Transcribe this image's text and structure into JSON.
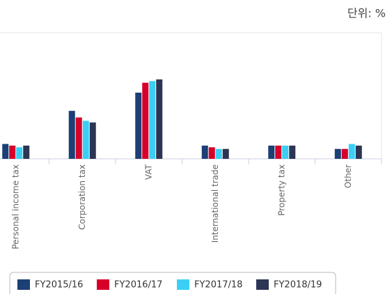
{
  "chart_data": {
    "type": "bar",
    "unit_label": "단위: %",
    "categories": [
      "Personal income tax",
      "Corporation tax",
      "VAT",
      "International trade",
      "Property tax",
      "Other"
    ],
    "series": [
      {
        "name": "FY2015/16",
        "color": "#1c3f75",
        "values": [
          9,
          29,
          40,
          8,
          8,
          6
        ]
      },
      {
        "name": "FY2016/17",
        "color": "#d6002b",
        "values": [
          8,
          25,
          46,
          7,
          8,
          6
        ]
      },
      {
        "name": "FY2017/18",
        "color": "#3ccff5",
        "values": [
          7,
          23,
          47,
          6,
          8,
          9
        ]
      },
      {
        "name": "FY2018/19",
        "color": "#2c3553",
        "values": [
          8,
          22,
          48,
          6,
          8,
          8
        ]
      }
    ]
  }
}
